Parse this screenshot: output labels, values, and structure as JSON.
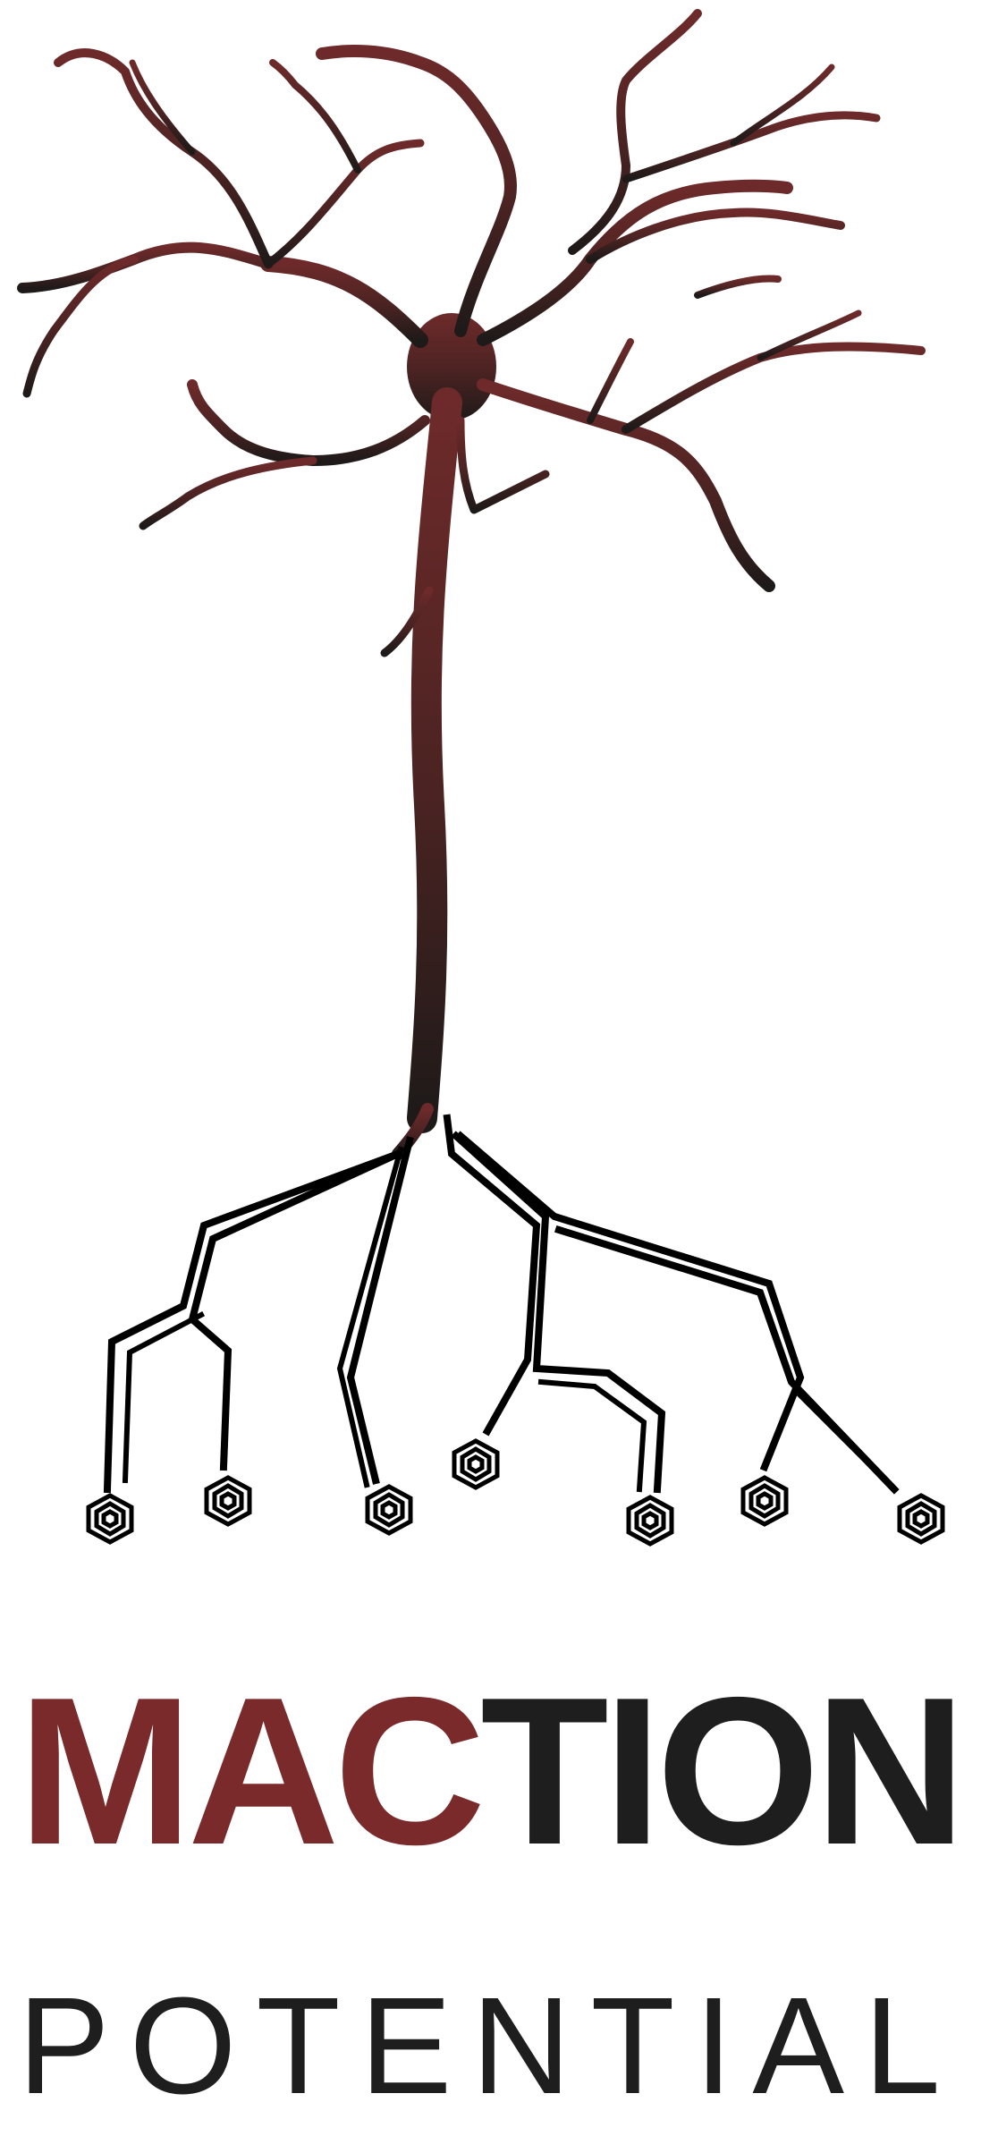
{
  "logo": {
    "title_accent": "MAC",
    "title_rest": "TION",
    "subtitle": "POTENTIAL",
    "colors": {
      "accent": "#7a2a2b",
      "tree_top": "#6e2a2a",
      "tree_bottom": "#1e1a19",
      "text_dark": "#1f1e1e",
      "background": "#ffffff"
    },
    "illustration": {
      "top_part": "neuron-tree-icon",
      "bottom_part": "circuit-roots-icon",
      "terminal_shape": "hexagon-node-icon"
    }
  }
}
